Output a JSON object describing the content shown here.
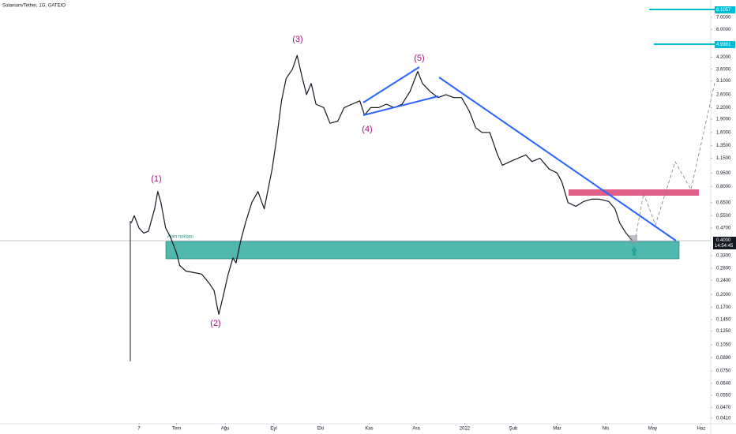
{
  "chart_data": {
    "type": "line",
    "title": "Solanium/Tether, 1G, GATEIO",
    "log_scale": true,
    "color": "#131722",
    "x": [
      -5,
      -3,
      0,
      3,
      6,
      10,
      12,
      14,
      17,
      20,
      24,
      26,
      30,
      35,
      40,
      45,
      48,
      50,
      51,
      54,
      57,
      60,
      62,
      65,
      68,
      72,
      76,
      80,
      85,
      88,
      91,
      94,
      98,
      101,
      104,
      107,
      110,
      113,
      118,
      122,
      127,
      131,
      136,
      141,
      144,
      148,
      153,
      158,
      163,
      168,
      173,
      178,
      181,
      186,
      191,
      196,
      201,
      206,
      211,
      215,
      219,
      224,
      229,
      232,
      237,
      242,
      247,
      251,
      256,
      262,
      267,
      270,
      274,
      279,
      284,
      289,
      294,
      300,
      304,
      307,
      311,
      315
    ],
    "values": [
      0.5,
      0.55,
      0.47,
      0.44,
      0.45,
      0.6,
      0.75,
      0.65,
      0.47,
      0.42,
      0.34,
      0.29,
      0.27,
      0.265,
      0.26,
      0.23,
      0.21,
      0.17,
      0.155,
      0.2,
      0.26,
      0.32,
      0.3,
      0.4,
      0.5,
      0.65,
      0.75,
      0.6,
      1.0,
      1.5,
      2.4,
      3.2,
      3.6,
      4.3,
      3.3,
      2.6,
      3.0,
      2.3,
      2.2,
      1.8,
      1.85,
      2.2,
      2.3,
      2.4,
      2.0,
      2.2,
      2.2,
      2.3,
      2.2,
      2.3,
      2.7,
      3.5,
      3.0,
      2.7,
      2.5,
      2.6,
      2.5,
      2.5,
      2.1,
      1.7,
      1.6,
      1.6,
      1.2,
      1.05,
      1.1,
      1.15,
      1.2,
      1.1,
      1.15,
      1.0,
      0.95,
      0.85,
      0.65,
      0.62,
      0.66,
      0.68,
      0.68,
      0.66,
      0.6,
      0.5,
      0.44,
      0.4
    ],
    "xlim": [
      -88.75,
      365.1
    ],
    "xticks": [
      {
        "value": 0,
        "label": "7"
      },
      {
        "value": 24,
        "label": "Tem"
      },
      {
        "value": 55,
        "label": "Ağu"
      },
      {
        "value": 86,
        "label": "Eyl"
      },
      {
        "value": 116,
        "label": "Eki"
      },
      {
        "value": 147,
        "label": "Kas"
      },
      {
        "value": 177,
        "label": "Ara"
      },
      {
        "value": 208,
        "label": "2022"
      },
      {
        "value": 239,
        "label": "Şub"
      },
      {
        "value": 267,
        "label": "Mar"
      },
      {
        "value": 298,
        "label": "Nis"
      },
      {
        "value": 328,
        "label": "May"
      },
      {
        "value": 359,
        "label": "Haz"
      }
    ],
    "ylim": [
      0.0385,
      8.75
    ],
    "yticks": [
      {
        "value": 7,
        "label": "7.0000"
      },
      {
        "value": 6,
        "label": "6.0000"
      },
      {
        "value": 4.2,
        "label": "4.2000"
      },
      {
        "value": 3.6,
        "label": "3.6000"
      },
      {
        "value": 3.1,
        "label": "3.1000"
      },
      {
        "value": 2.6,
        "label": "2.6000"
      },
      {
        "value": 2.2,
        "label": "2.2000"
      },
      {
        "value": 1.9,
        "label": "1.9000"
      },
      {
        "value": 1.6,
        "label": "1.6000"
      },
      {
        "value": 1.35,
        "label": "1.3500"
      },
      {
        "value": 1.15,
        "label": "1.1500"
      },
      {
        "value": 0.95,
        "label": "0.9500"
      },
      {
        "value": 0.8,
        "label": "0.8000"
      },
      {
        "value": 0.65,
        "label": "0.6500"
      },
      {
        "value": 0.55,
        "label": "0.5500"
      },
      {
        "value": 0.47,
        "label": "0.4700"
      },
      {
        "value": 0.33,
        "label": "0.3300"
      },
      {
        "value": 0.28,
        "label": "0.2800"
      },
      {
        "value": 0.24,
        "label": "0.2400"
      },
      {
        "value": 0.2,
        "label": "0.2000"
      },
      {
        "value": 0.17,
        "label": "0.1700"
      },
      {
        "value": 0.145,
        "label": "0.1450"
      },
      {
        "value": 0.125,
        "label": "0.1250"
      },
      {
        "value": 0.105,
        "label": "0.1050"
      },
      {
        "value": 0.089,
        "label": "0.0890"
      },
      {
        "value": 0.075,
        "label": "0.0750"
      },
      {
        "value": 0.064,
        "label": "0.0640"
      },
      {
        "value": 0.055,
        "label": "0.0550"
      },
      {
        "value": 0.047,
        "label": "0.0470"
      },
      {
        "value": 0.041,
        "label": "0.0410"
      }
    ],
    "annotations": {
      "waves": [
        "(1)",
        "(2)",
        "(3)",
        "(4)",
        "(5)"
      ],
      "zone_label": "Alım noktası",
      "price_tags": [
        "8.1057",
        "4.9981"
      ],
      "last_price": "0.4000",
      "countdown": "14:54:45"
    }
  }
}
